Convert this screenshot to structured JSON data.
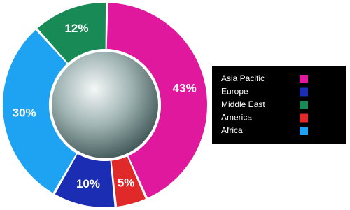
{
  "chart_data": {
    "type": "donut",
    "categories": [
      "Asia Pacific",
      "America",
      "Europe",
      "Africa",
      "Middle East"
    ],
    "values": [
      43,
      5,
      10,
      30,
      12
    ],
    "value_labels": [
      "43%",
      "5%",
      "10%",
      "30%",
      "12%"
    ],
    "colors": [
      "#e0189e",
      "#e02a2a",
      "#1b2eb3",
      "#1ea2f2",
      "#178a55"
    ],
    "legend": [
      "Asia Pacific",
      "Europe",
      "Middle East",
      "America",
      "Africa"
    ],
    "legend_position": "right"
  }
}
